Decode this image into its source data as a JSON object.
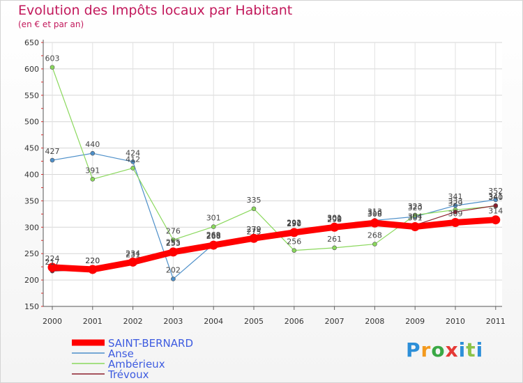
{
  "chart_data": {
    "type": "line",
    "title": "Evolution des Impôts locaux par Habitant",
    "subtitle": "(en € et par an)",
    "x": [
      "2000",
      "2001",
      "2002",
      "2003",
      "2004",
      "2005",
      "2006",
      "2007",
      "2008",
      "2009",
      "2010",
      "2011"
    ],
    "yticks": [
      150,
      200,
      250,
      300,
      350,
      400,
      450,
      500,
      550,
      600,
      650
    ],
    "ylim": [
      150,
      650
    ],
    "grid": true,
    "legend_position": "bottom-left",
    "series": [
      {
        "name": "SAINT-BERNARD",
        "color": "#ff0000",
        "values": [
          224,
          220,
          234,
          253,
          266,
          279,
          290,
          300,
          308,
          301,
          309,
          314
        ]
      },
      {
        "name": "Anse",
        "color": "#4d8fc9",
        "values": [
          427,
          440,
          424,
          202,
          268,
          275,
          292,
          298,
          313,
          320,
          341,
          352
        ]
      },
      {
        "name": "Ambérieux",
        "color": "#8ad85c",
        "values": [
          603,
          391,
          412,
          276,
          301,
          335,
          256,
          261,
          268,
          323,
          333,
          340
        ]
      },
      {
        "name": "Trévoux",
        "color": "#8b1f2d",
        "values": [
          217,
          220,
          231,
          255,
          269,
          279,
          291,
          301,
          310,
          304,
          329,
          341
        ]
      }
    ]
  },
  "branding": {
    "logo_text": "Proxiti",
    "logo_colors": [
      "#2d8fd8",
      "#f39a1e",
      "#3aa845",
      "#e53935",
      "#2d8fd8",
      "#8bc34a"
    ]
  }
}
